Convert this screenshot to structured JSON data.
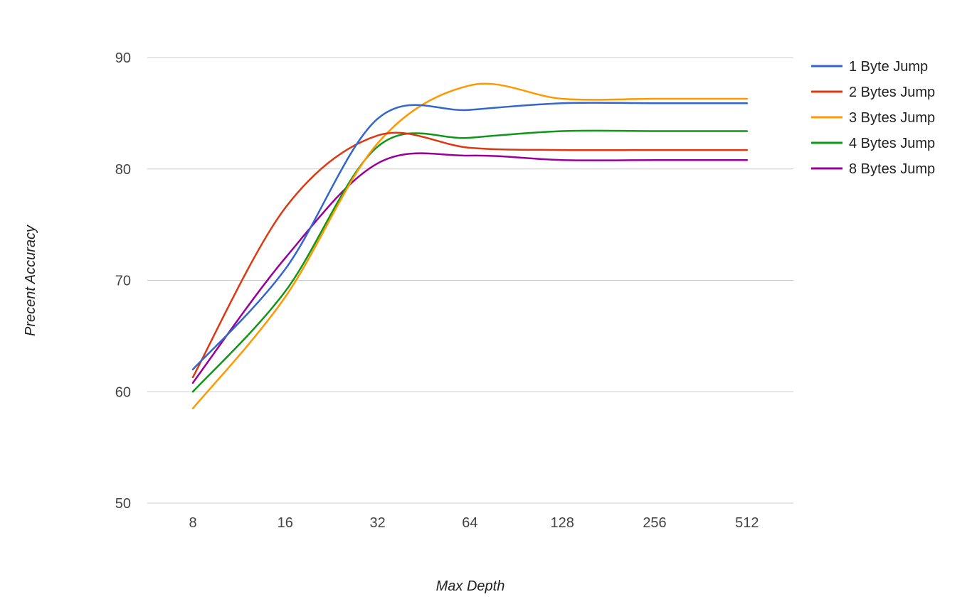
{
  "chart_data": {
    "type": "line",
    "title": "",
    "xlabel": "Max Depth",
    "ylabel": "Precent Accuracy",
    "categories": [
      "8",
      "16",
      "32",
      "64",
      "128",
      "256",
      "512"
    ],
    "ylim": [
      50,
      90
    ],
    "yticks": [
      50,
      60,
      70,
      80,
      90
    ],
    "grid": true,
    "legend_position": "right",
    "smooth": true,
    "series": [
      {
        "name": "1 Byte Jump",
        "color": "#3366cc",
        "values": [
          62.0,
          71.0,
          84.5,
          85.3,
          85.9,
          85.9,
          85.9
        ]
      },
      {
        "name": "2 Bytes Jump",
        "color": "#dc3912",
        "values": [
          61.3,
          76.5,
          83.0,
          81.9,
          81.7,
          81.7,
          81.7
        ]
      },
      {
        "name": "3 Bytes Jump",
        "color": "#ff9900",
        "values": [
          58.5,
          68.5,
          82.3,
          87.5,
          86.3,
          86.3,
          86.3
        ]
      },
      {
        "name": "4 Bytes Jump",
        "color": "#109618",
        "values": [
          60.0,
          69.0,
          82.0,
          82.8,
          83.4,
          83.4,
          83.4
        ]
      },
      {
        "name": "8 Bytes Jump",
        "color": "#990099",
        "values": [
          60.8,
          72.0,
          80.5,
          81.2,
          80.8,
          80.8,
          80.8
        ]
      }
    ]
  }
}
